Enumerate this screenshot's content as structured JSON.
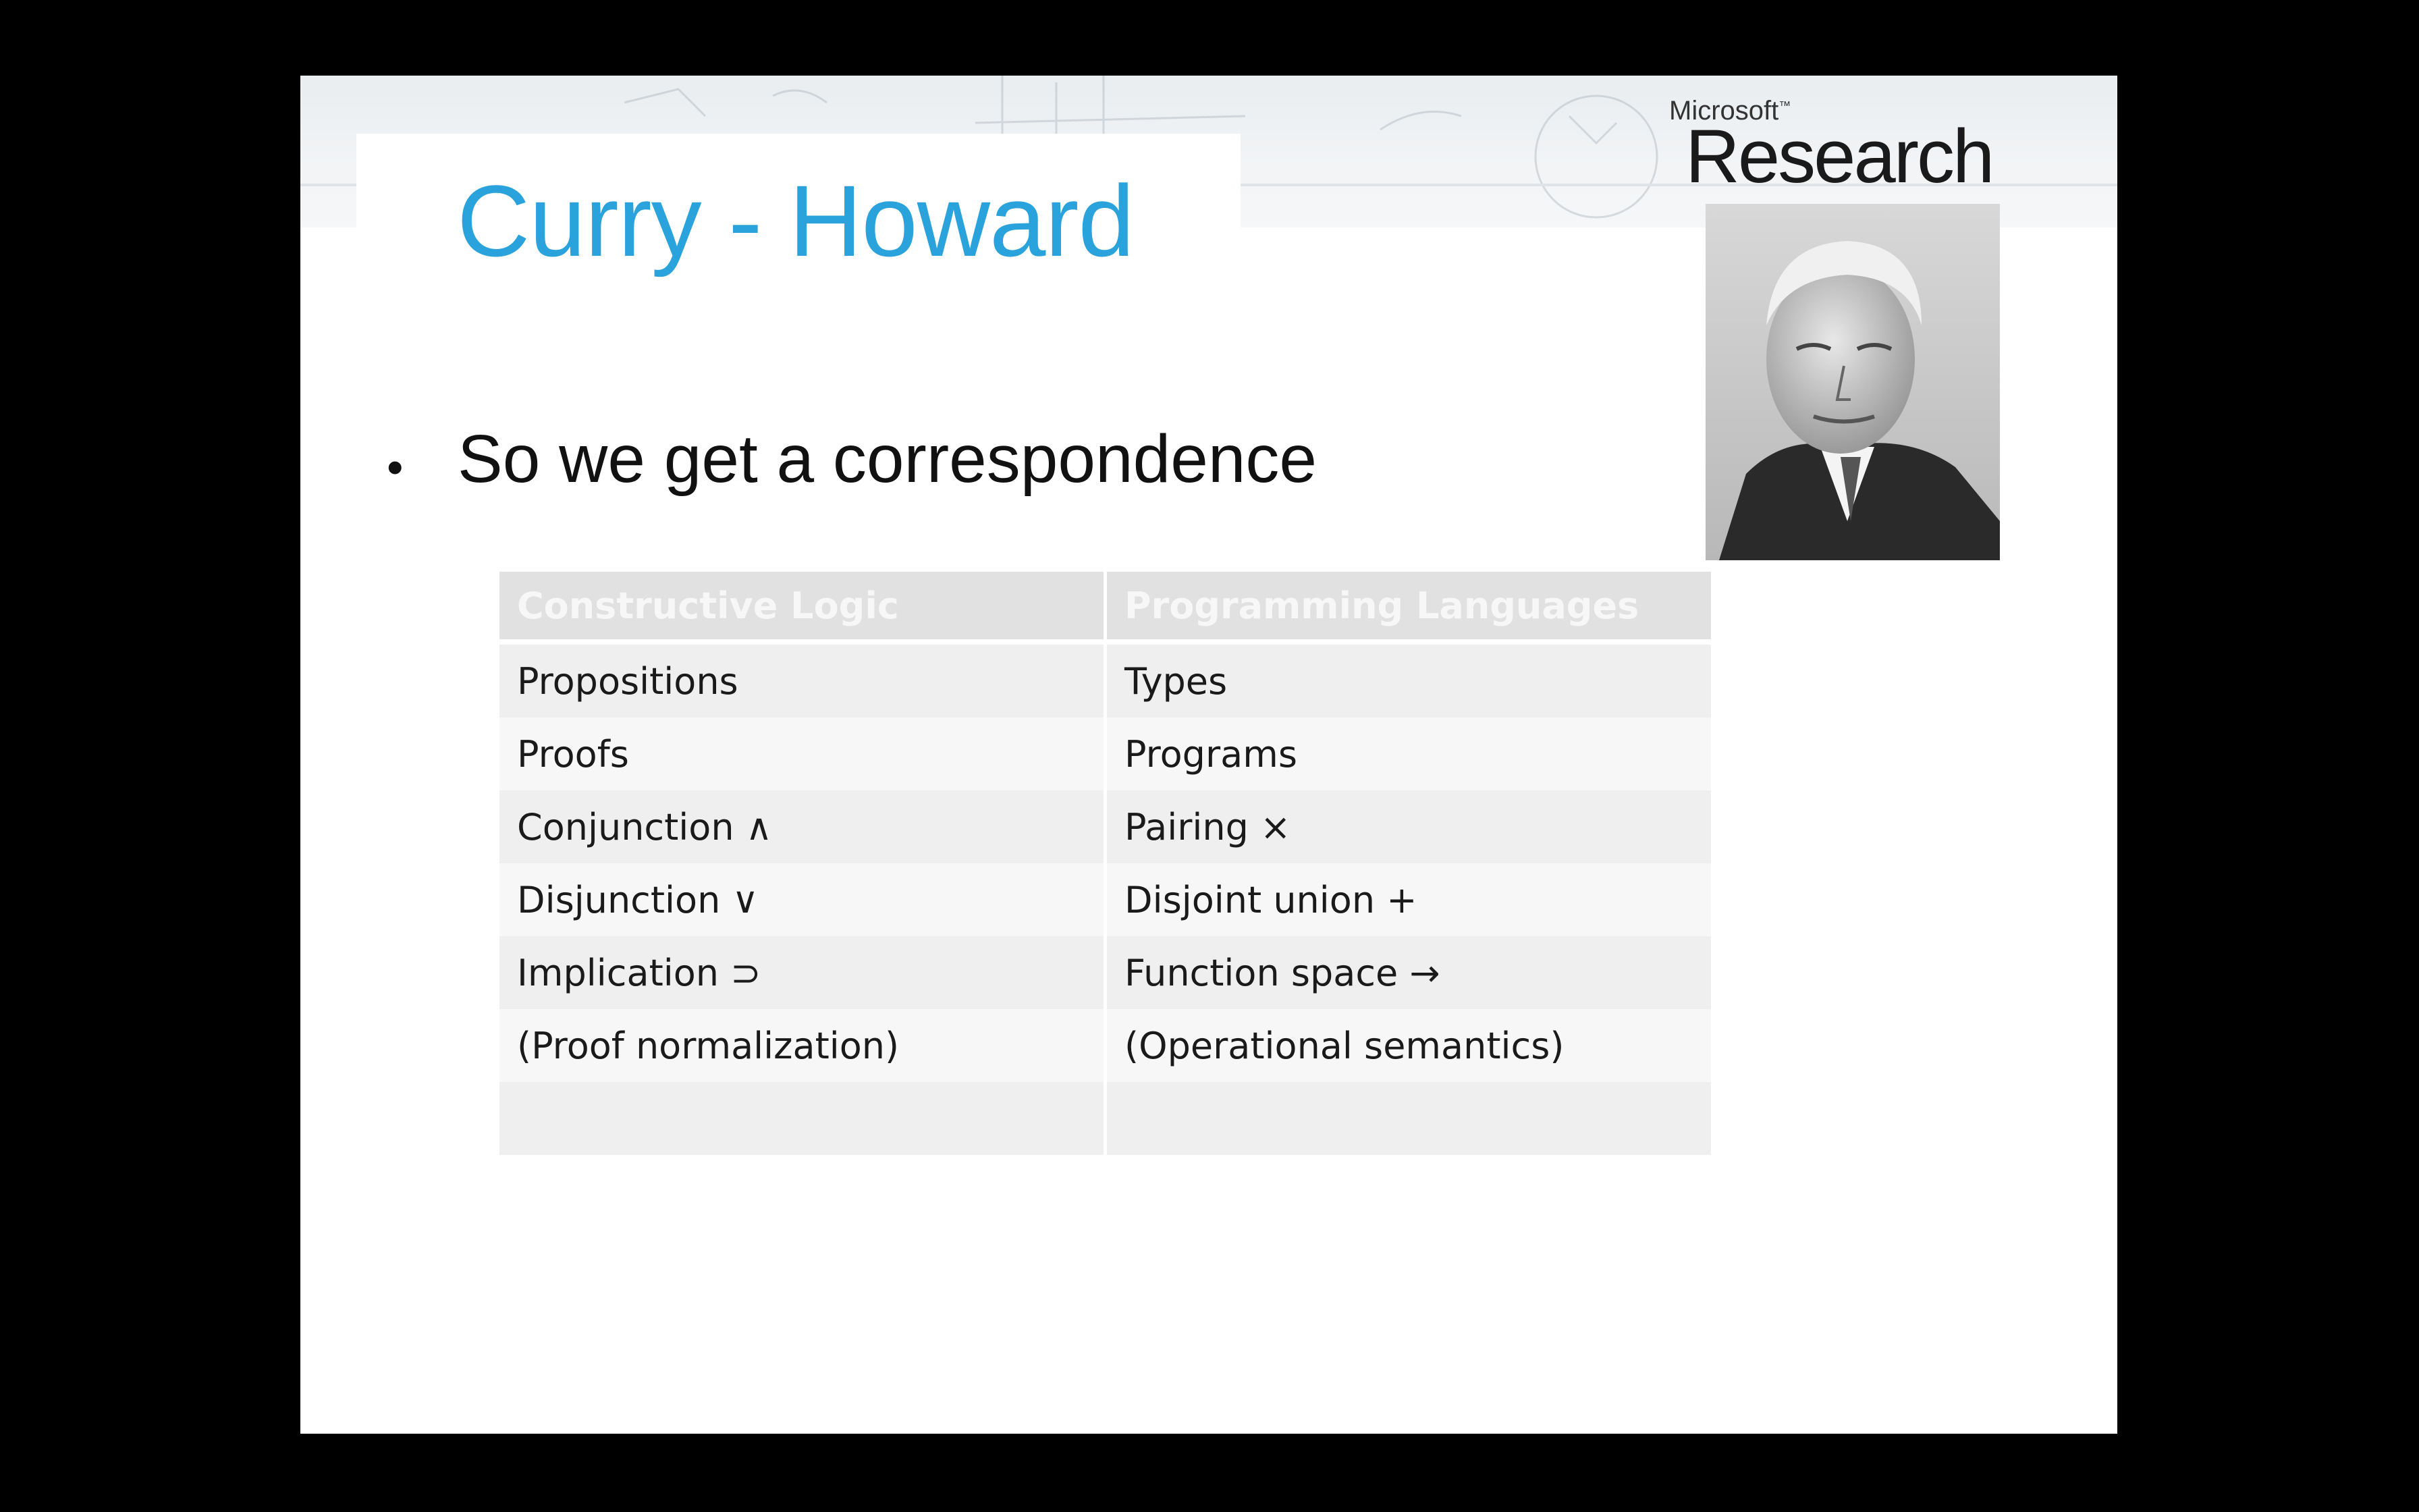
{
  "slide": {
    "title": "Curry - Howard",
    "bullet": "So we get a correspondence",
    "logo": {
      "small": "Microsoft",
      "big": "Research"
    },
    "photo_icon": "portrait-photo"
  },
  "table": {
    "headers": [
      "Constructive Logic",
      "Programming Languages"
    ],
    "rows": [
      [
        "Propositions",
        "Types"
      ],
      [
        "Proofs",
        "Programs"
      ],
      [
        "Conjunction ∧",
        "Pairing ×"
      ],
      [
        "Disjunction ∨",
        "Disjoint union +"
      ],
      [
        "Implication ⊃",
        "Function space →"
      ],
      [
        "(Proof normalization)",
        "(Operational semantics)"
      ],
      [
        "",
        ""
      ]
    ]
  },
  "colors": {
    "background": "#000000",
    "slide": "#ffffff",
    "title": "#2aa3dc",
    "table_header": "#e1e1e1",
    "table_row_odd": "#efefef",
    "table_row_even": "#f7f7f7"
  }
}
